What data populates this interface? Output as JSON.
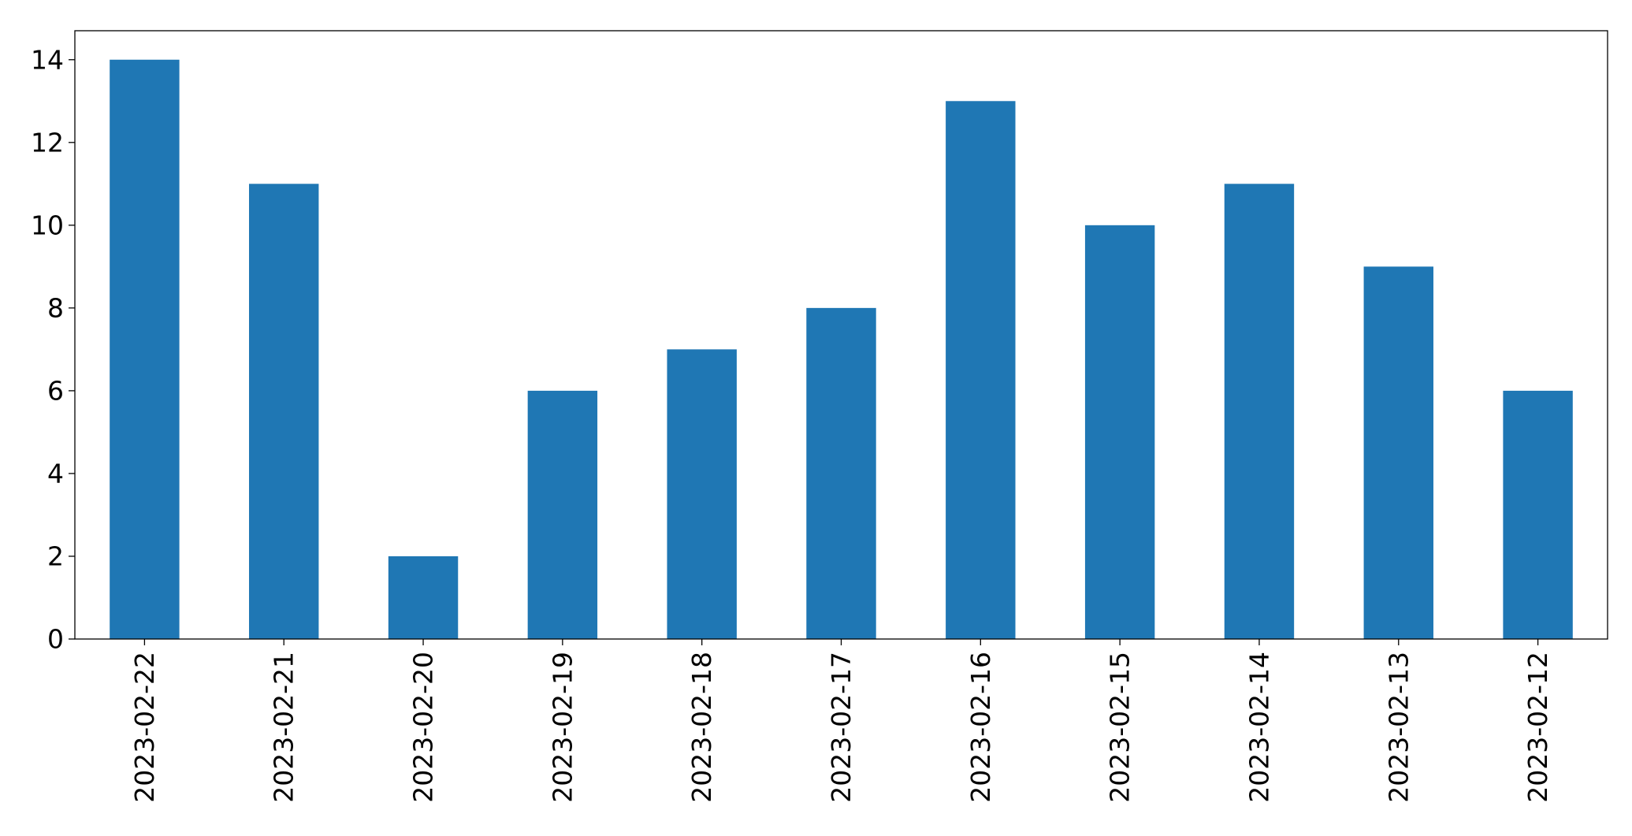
{
  "chart_data": {
    "type": "bar",
    "categories": [
      "2023-02-22",
      "2023-02-21",
      "2023-02-20",
      "2023-02-19",
      "2023-02-18",
      "2023-02-17",
      "2023-02-16",
      "2023-02-15",
      "2023-02-14",
      "2023-02-13",
      "2023-02-12"
    ],
    "values": [
      14,
      11,
      2,
      6,
      7,
      8,
      13,
      10,
      11,
      9,
      6
    ],
    "title": "",
    "xlabel": "",
    "ylabel": "",
    "ylim": [
      0,
      14.7
    ],
    "yticks": [
      0,
      2,
      4,
      6,
      8,
      10,
      12,
      14
    ],
    "grid": false,
    "legend": "none",
    "bar_color": "#1f77b4",
    "x_tick_rotation": "vertical"
  }
}
